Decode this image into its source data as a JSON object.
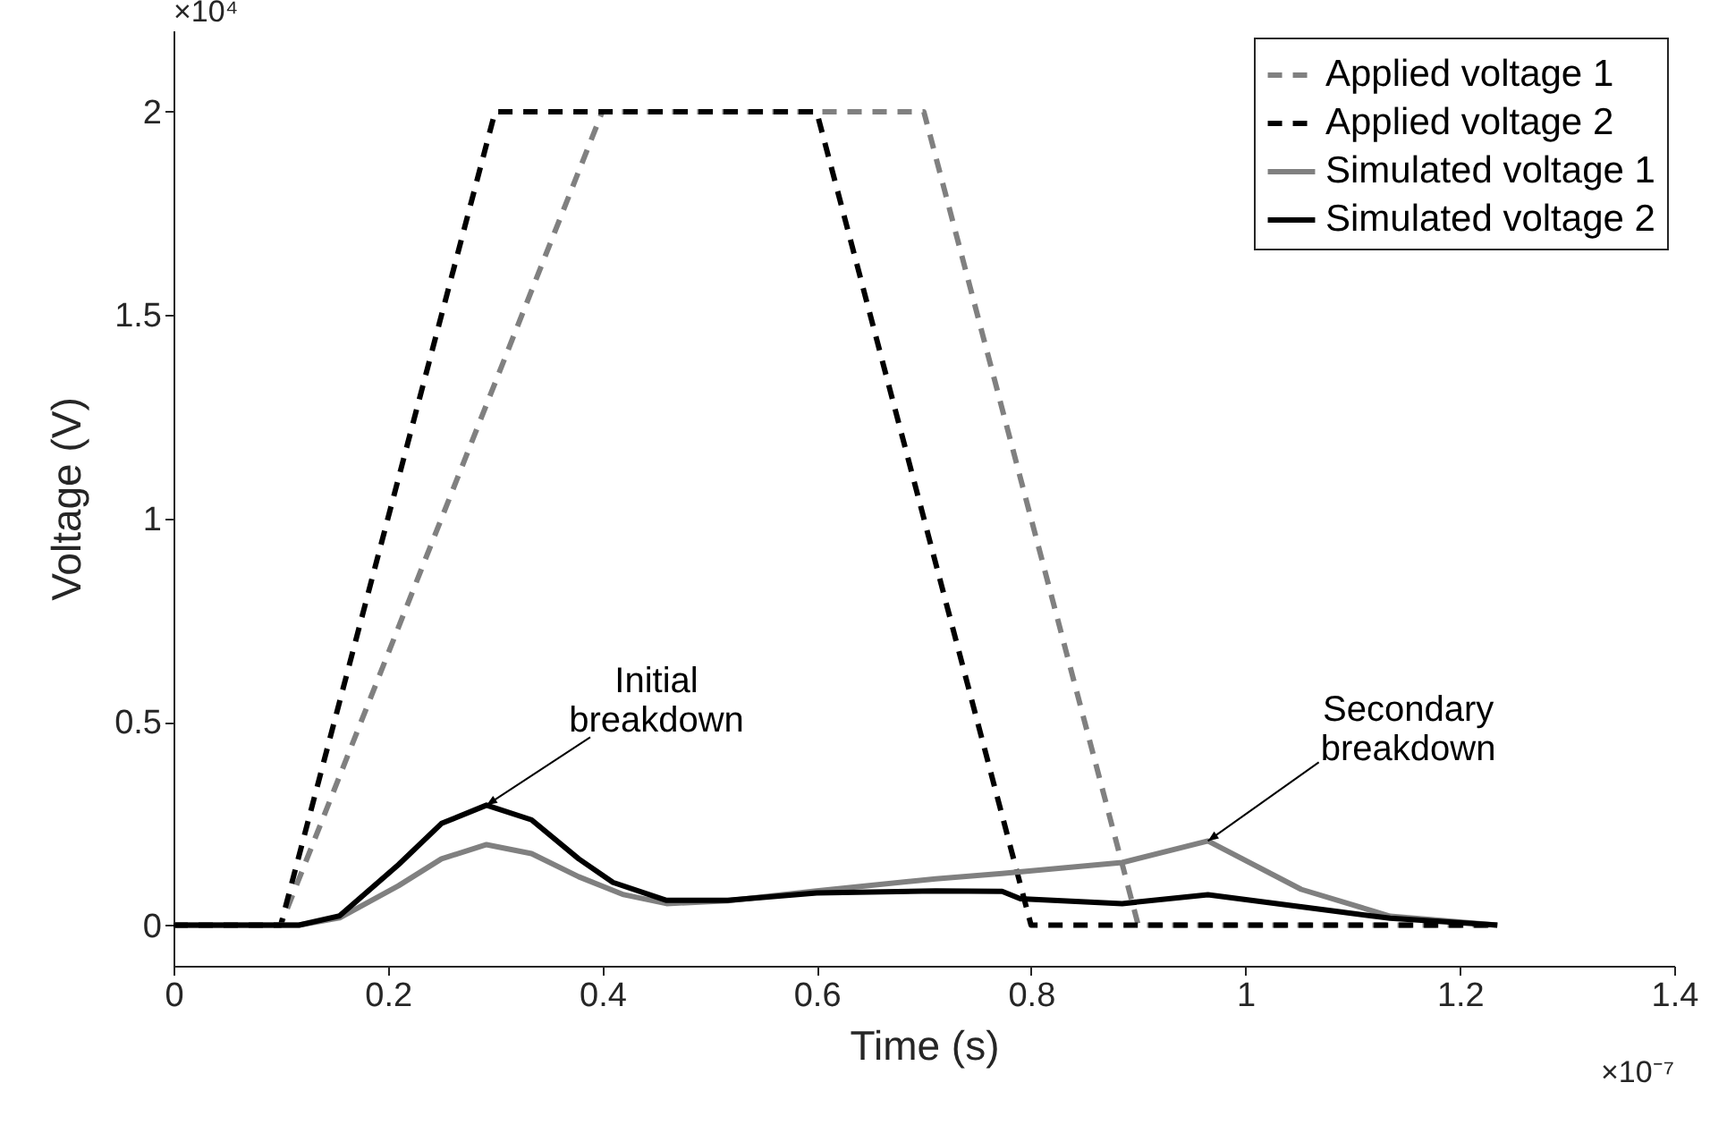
{
  "chart_data": {
    "type": "line",
    "xlabel": "Time (s)",
    "ylabel": "Voltage (V)",
    "xlim": [
      0,
      1.4
    ],
    "ylim": [
      -0.1,
      2.2
    ],
    "xticks": [
      0,
      0.2,
      0.4,
      0.6,
      0.8,
      1,
      1.2,
      1.4
    ],
    "yticks": [
      0,
      0.5,
      1,
      1.5,
      2
    ],
    "grid": false,
    "legend": "top right",
    "annotations": [
      "×10⁴",
      "×10⁻⁷",
      {
        "text": "Initial breakdown",
        "x": 0.292,
        "y": 0.295
      },
      {
        "text": "Secondary breakdown",
        "x": 0.965,
        "y": 0.207
      }
    ],
    "series": [
      {
        "name": "Applied voltage 1",
        "color": "#808080",
        "line_style": "dashed",
        "x": [
          0,
          0.1,
          0.4,
          0.7,
          0.9,
          1.23
        ],
        "values": [
          0,
          0,
          2,
          2,
          0,
          0
        ]
      },
      {
        "name": "Applied voltage 2",
        "color": "#000000",
        "line_style": "dashed",
        "x": [
          0,
          0.1,
          0.3,
          0.6,
          0.8,
          1.23
        ],
        "values": [
          0,
          0,
          2,
          2,
          0,
          0
        ]
      },
      {
        "name": "Simulated voltage 1",
        "color": "#808080",
        "line_style": "solid",
        "x": [
          0,
          0.117,
          0.155,
          0.21,
          0.25,
          0.292,
          0.334,
          0.378,
          0.42,
          0.46,
          0.517,
          0.6,
          0.711,
          0.773,
          0.885,
          0.965,
          1.052,
          1.135,
          1.235
        ],
        "values": [
          0,
          0,
          0.018,
          0.097,
          0.163,
          0.198,
          0.176,
          0.119,
          0.075,
          0.053,
          0.06,
          0.084,
          0.114,
          0.127,
          0.154,
          0.207,
          0.088,
          0.022,
          0
        ]
      },
      {
        "name": "Simulated voltage 2",
        "color": "#000000",
        "line_style": "solid",
        "x": [
          0,
          0.117,
          0.155,
          0.21,
          0.25,
          0.292,
          0.334,
          0.378,
          0.41,
          0.46,
          0.517,
          0.6,
          0.711,
          0.773,
          0.79,
          0.885,
          0.965,
          1.052,
          1.135,
          1.235
        ],
        "values": [
          0,
          0,
          0.023,
          0.149,
          0.25,
          0.295,
          0.259,
          0.163,
          0.105,
          0.061,
          0.061,
          0.079,
          0.084,
          0.083,
          0.065,
          0.053,
          0.075,
          0.045,
          0.017,
          0
        ]
      }
    ]
  }
}
